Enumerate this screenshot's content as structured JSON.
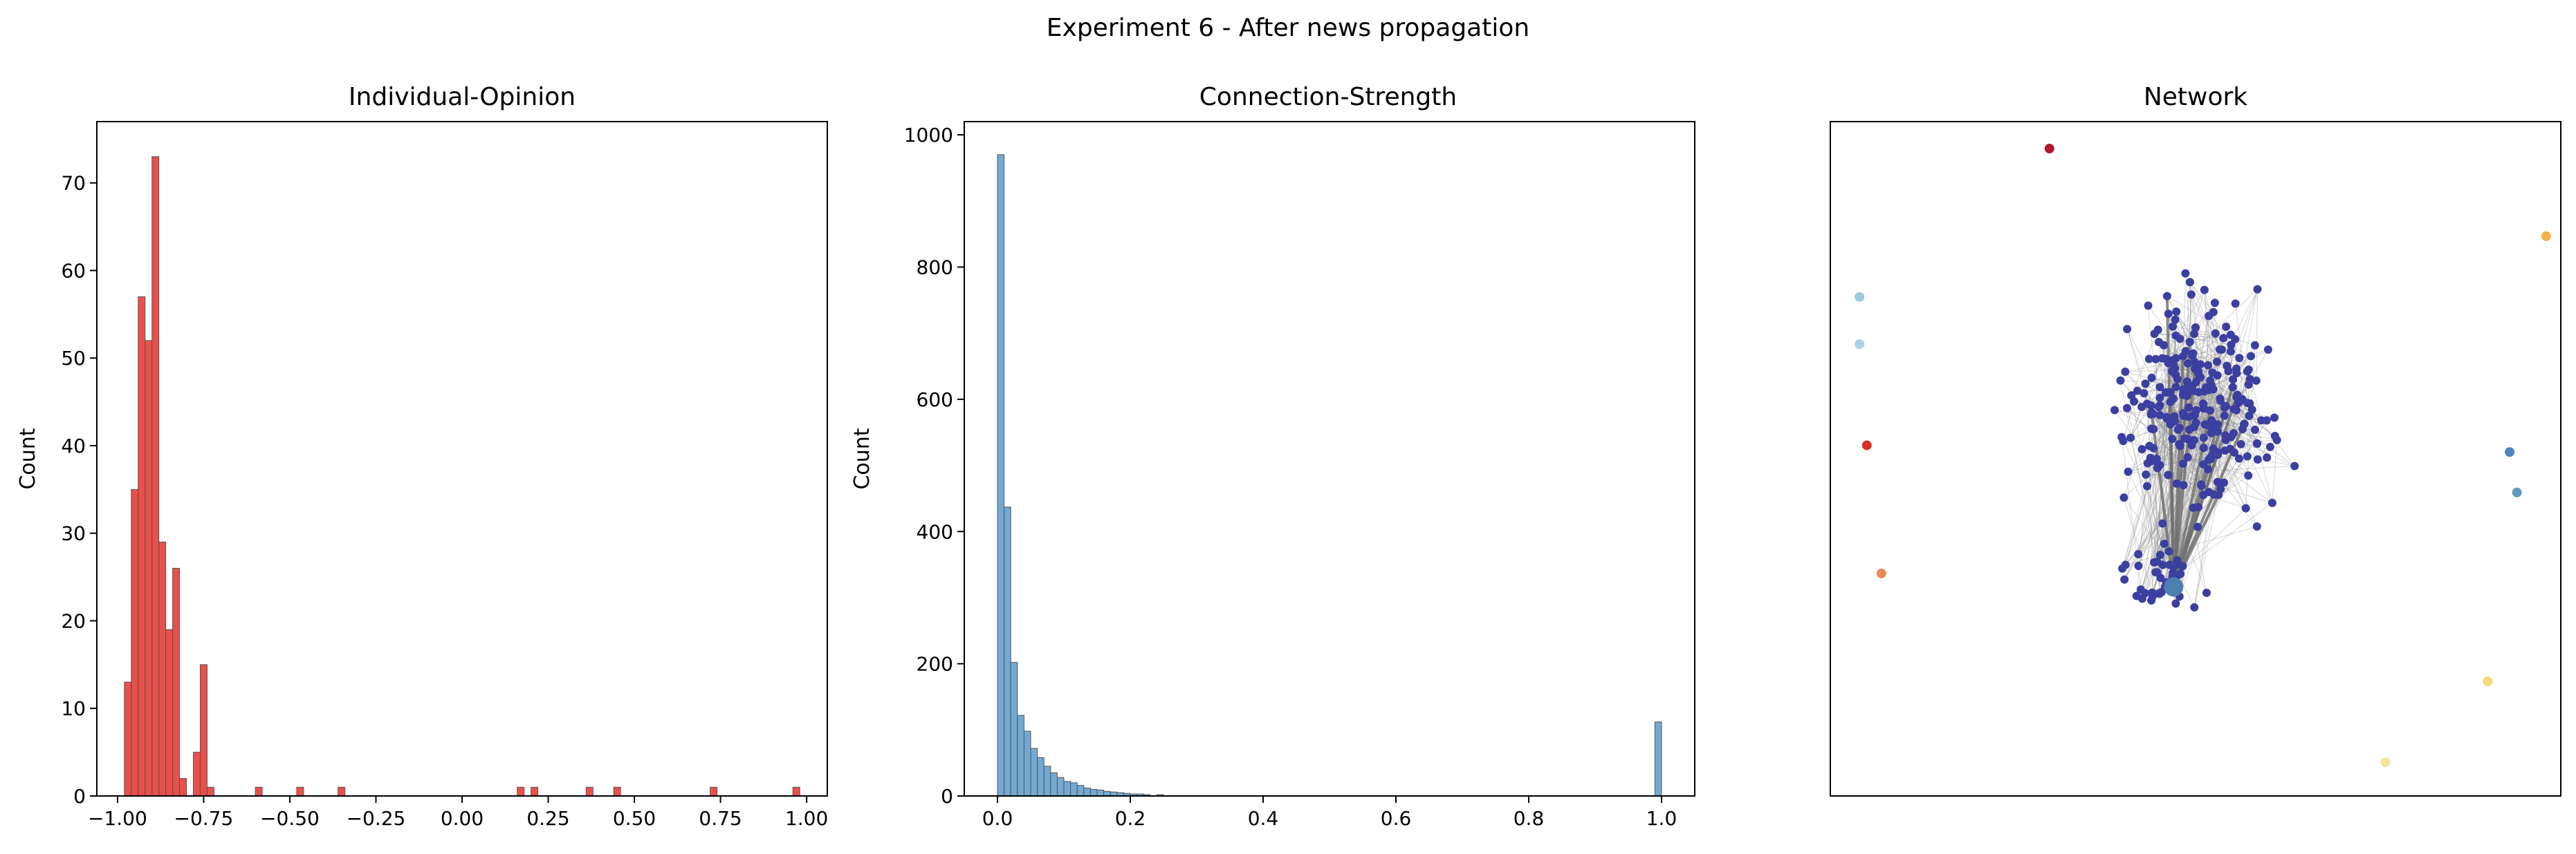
{
  "figure": {
    "suptitle": "Experiment 6 - After news propagation"
  },
  "chart_data": [
    {
      "type": "bar",
      "title": "Individual-Opinion",
      "xlabel": "",
      "ylabel": "Count",
      "xlim": [
        -1.06,
        1.06
      ],
      "ylim": [
        0,
        77
      ],
      "xticks": [
        -1.0,
        -0.75,
        -0.5,
        -0.25,
        0.0,
        0.25,
        0.5,
        0.75,
        1.0
      ],
      "xtick_labels": [
        "−1.00",
        "−0.75",
        "−0.50",
        "−0.25",
        "0.00",
        "0.25",
        "0.50",
        "0.75",
        "1.00"
      ],
      "yticks": [
        0,
        10,
        20,
        30,
        40,
        50,
        60,
        70
      ],
      "ytick_labels": [
        "0",
        "10",
        "20",
        "30",
        "40",
        "50",
        "60",
        "70"
      ],
      "bin_width": 0.02,
      "bar_color": "#e8302a",
      "bins": [
        {
          "x": -0.98,
          "count": 13
        },
        {
          "x": -0.96,
          "count": 35
        },
        {
          "x": -0.94,
          "count": 57
        },
        {
          "x": -0.92,
          "count": 52
        },
        {
          "x": -0.9,
          "count": 73
        },
        {
          "x": -0.88,
          "count": 29
        },
        {
          "x": -0.86,
          "count": 19
        },
        {
          "x": -0.84,
          "count": 26
        },
        {
          "x": -0.82,
          "count": 2
        },
        {
          "x": -0.8,
          "count": 0
        },
        {
          "x": -0.78,
          "count": 5
        },
        {
          "x": -0.76,
          "count": 15
        },
        {
          "x": -0.74,
          "count": 1
        },
        {
          "x": -0.6,
          "count": 1
        },
        {
          "x": -0.48,
          "count": 1
        },
        {
          "x": -0.36,
          "count": 1
        },
        {
          "x": 0.16,
          "count": 1
        },
        {
          "x": 0.2,
          "count": 1
        },
        {
          "x": 0.36,
          "count": 1
        },
        {
          "x": 0.44,
          "count": 1
        },
        {
          "x": 0.72,
          "count": 1
        },
        {
          "x": 0.96,
          "count": 1
        }
      ]
    },
    {
      "type": "bar",
      "title": "Connection-Strength",
      "xlabel": "",
      "ylabel": "Count",
      "xlim": [
        -0.05,
        1.05
      ],
      "ylim": [
        0,
        1020
      ],
      "xticks": [
        0.0,
        0.2,
        0.4,
        0.6,
        0.8,
        1.0
      ],
      "xtick_labels": [
        "0.0",
        "0.2",
        "0.4",
        "0.6",
        "0.8",
        "1.0"
      ],
      "yticks": [
        0,
        200,
        400,
        600,
        800,
        1000
      ],
      "ytick_labels": [
        "0",
        "200",
        "400",
        "600",
        "800",
        "1000"
      ],
      "bin_width": 0.01,
      "bar_color": "#5b9bcb",
      "bins": [
        {
          "x": 0.0,
          "count": 970
        },
        {
          "x": 0.01,
          "count": 437
        },
        {
          "x": 0.02,
          "count": 202
        },
        {
          "x": 0.03,
          "count": 122
        },
        {
          "x": 0.04,
          "count": 98
        },
        {
          "x": 0.05,
          "count": 72
        },
        {
          "x": 0.06,
          "count": 58
        },
        {
          "x": 0.07,
          "count": 45
        },
        {
          "x": 0.08,
          "count": 35
        },
        {
          "x": 0.09,
          "count": 28
        },
        {
          "x": 0.1,
          "count": 22
        },
        {
          "x": 0.11,
          "count": 20
        },
        {
          "x": 0.12,
          "count": 16
        },
        {
          "x": 0.13,
          "count": 12
        },
        {
          "x": 0.14,
          "count": 10
        },
        {
          "x": 0.15,
          "count": 9
        },
        {
          "x": 0.16,
          "count": 7
        },
        {
          "x": 0.17,
          "count": 6
        },
        {
          "x": 0.18,
          "count": 5
        },
        {
          "x": 0.19,
          "count": 4
        },
        {
          "x": 0.2,
          "count": 3
        },
        {
          "x": 0.21,
          "count": 3
        },
        {
          "x": 0.22,
          "count": 2
        },
        {
          "x": 0.24,
          "count": 2
        },
        {
          "x": 0.99,
          "count": 112
        }
      ]
    },
    {
      "type": "scatter",
      "title": "Network",
      "xlabel": "",
      "ylabel": "",
      "axes_ticks": false,
      "edge_color": "#8a8a8a",
      "cluster_color": "#3b3fa0",
      "cluster_node_count": 300,
      "cluster_hub_color": "#4f7fb0",
      "outlier_nodes": [
        {
          "x": 0.3,
          "y": 0.96,
          "color": "#b2182b"
        },
        {
          "x": 0.98,
          "y": 0.83,
          "color": "#f4b04a"
        },
        {
          "x": 0.04,
          "y": 0.74,
          "color": "#9ecae1"
        },
        {
          "x": 0.04,
          "y": 0.67,
          "color": "#a6d3e4"
        },
        {
          "x": 0.05,
          "y": 0.52,
          "color": "#d73027"
        },
        {
          "x": 0.93,
          "y": 0.51,
          "color": "#4f86c0"
        },
        {
          "x": 0.94,
          "y": 0.45,
          "color": "#5f9bbf"
        },
        {
          "x": 0.07,
          "y": 0.33,
          "color": "#e88b5a"
        },
        {
          "x": 0.9,
          "y": 0.17,
          "color": "#fbd57a"
        },
        {
          "x": 0.76,
          "y": 0.05,
          "color": "#f6e3a2"
        }
      ]
    }
  ]
}
